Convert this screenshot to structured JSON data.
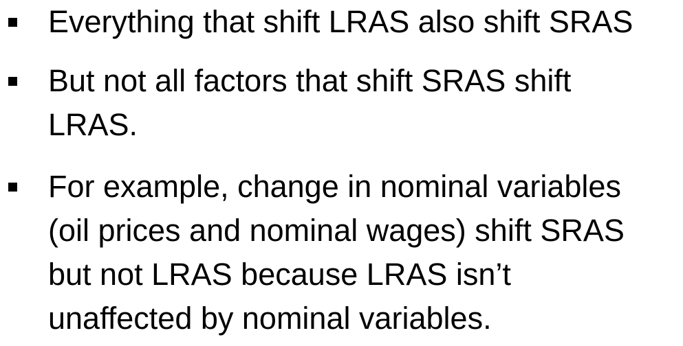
{
  "bullets": [
    {
      "lines": [
        "Everything that shift LRAS also shift SRAS"
      ]
    },
    {
      "lines": [
        "But not all factors that shift SRAS shift",
        "LRAS."
      ]
    },
    {
      "lines": [
        "For example, change in nominal variables",
        "(oil prices and nominal wages) shift SRAS",
        "but not LRAS because LRAS isn’t",
        "unaffected by nominal variables."
      ]
    }
  ]
}
